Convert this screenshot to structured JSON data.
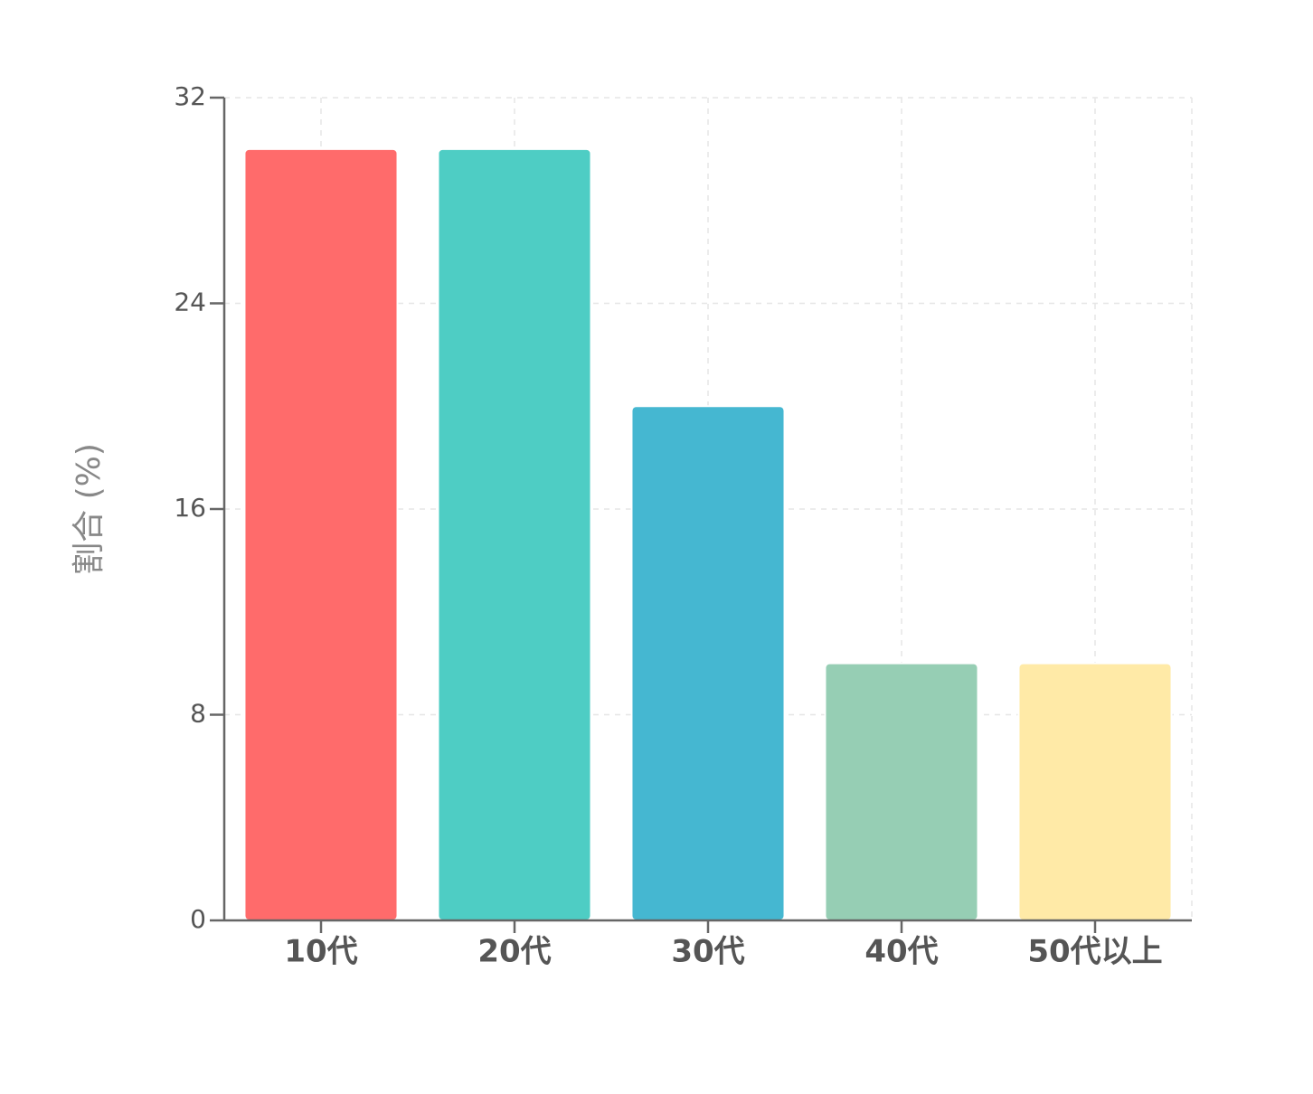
{
  "chart_data": {
    "type": "bar",
    "y_label": "割合 (%)",
    "categories": [
      "10代",
      "20代",
      "30代",
      "40代",
      "50代以上"
    ],
    "values": [
      30,
      30,
      20,
      10,
      10
    ],
    "colors": [
      "#ff6b6b",
      "#4ecdc4",
      "#45b7d1",
      "#96ceb4",
      "#ffeaa7"
    ],
    "ylim": [
      0,
      32
    ],
    "yticks": [
      0,
      8,
      16,
      24,
      32
    ],
    "grid": true
  }
}
